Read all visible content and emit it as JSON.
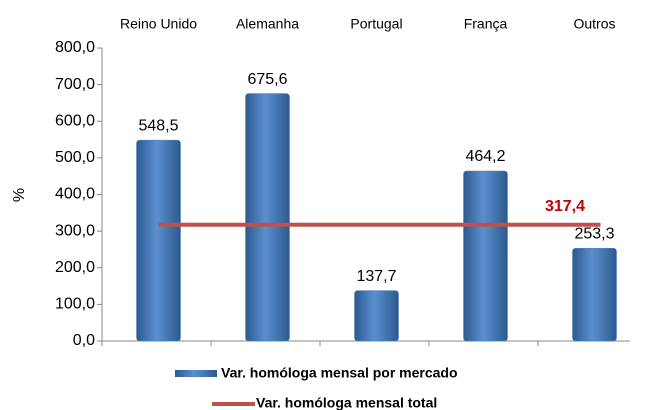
{
  "chart_data": {
    "type": "bar",
    "y_label": "%",
    "categories": [
      "Reino Unido",
      "Alemanha",
      "Portugal",
      "França",
      "Outros"
    ],
    "series": [
      {
        "name": "Var. homóloga mensal por mercado",
        "color": "#4f81bd",
        "values": [
          548.5,
          675.6,
          137.7,
          464.2,
          253.3
        ],
        "value_labels": [
          "548,5",
          "675,6",
          "137,7",
          "464,2",
          "253,3"
        ]
      }
    ],
    "total": {
      "name": "Var. homóloga mensal total",
      "color": "#c0504d",
      "value": 317.4,
      "label": "317,4",
      "label_color": "#c00000"
    },
    "ylim": [
      0,
      800
    ],
    "yticks": [
      {
        "value": 0,
        "label": "0,0"
      },
      {
        "value": 100,
        "label": "100,0"
      },
      {
        "value": 200,
        "label": "200,0"
      },
      {
        "value": 300,
        "label": "300,0"
      },
      {
        "value": 400,
        "label": "400,0"
      },
      {
        "value": 500,
        "label": "500,0"
      },
      {
        "value": 600,
        "label": "600,0"
      },
      {
        "value": 700,
        "label": "700,0"
      },
      {
        "value": 800,
        "label": "800,0"
      }
    ]
  }
}
